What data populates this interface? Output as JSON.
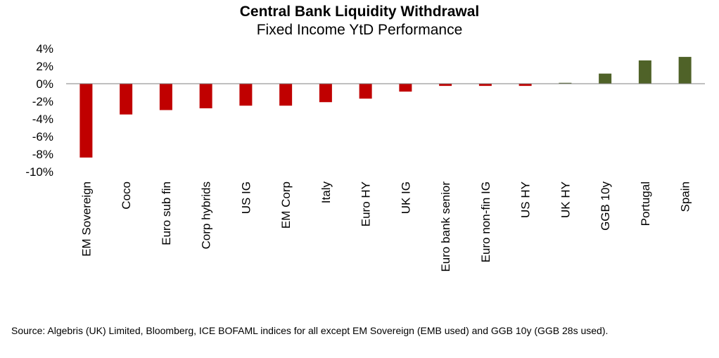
{
  "chart_data": {
    "type": "bar",
    "title": "Central Bank Liquidity Withdrawal",
    "subtitle": "Fixed Income YtD Performance",
    "categories": [
      "EM Sovereign",
      "Coco",
      "Euro sub fin",
      "Corp hybrids",
      "US IG",
      "EM Corp",
      "Italy",
      "Euro HY",
      "UK IG",
      "Euro bank senior",
      "Euro non-fin IG",
      "US HY",
      "UK HY",
      "GGB 10y",
      "Portugal",
      "Spain"
    ],
    "series": [
      {
        "values": [
          -8.4,
          -3.5,
          -3.0,
          -2.8,
          -2.5,
          -2.5,
          -2.1,
          -1.7,
          -0.9,
          -0.25,
          -0.25,
          -0.25,
          0.1,
          1.15,
          2.65,
          3.05
        ]
      }
    ],
    "ylim": [
      -10,
      4
    ],
    "yticks": [
      "4%",
      "2%",
      "0%",
      "-2%",
      "-4%",
      "-6%",
      "-8%",
      "-10%"
    ],
    "ytick_values": [
      4,
      2,
      0,
      -2,
      -4,
      -6,
      -8,
      -10
    ],
    "colors": {
      "negative": "#c00000",
      "positive": "#4f6228",
      "axis": "#808080"
    },
    "grid": false,
    "legend": "none",
    "source": "Source: Algebris (UK) Limited, Bloomberg, ICE BOFAML indices for all except EM Sovereign (EMB used) and GGB 10y (GGB 28s used)."
  }
}
